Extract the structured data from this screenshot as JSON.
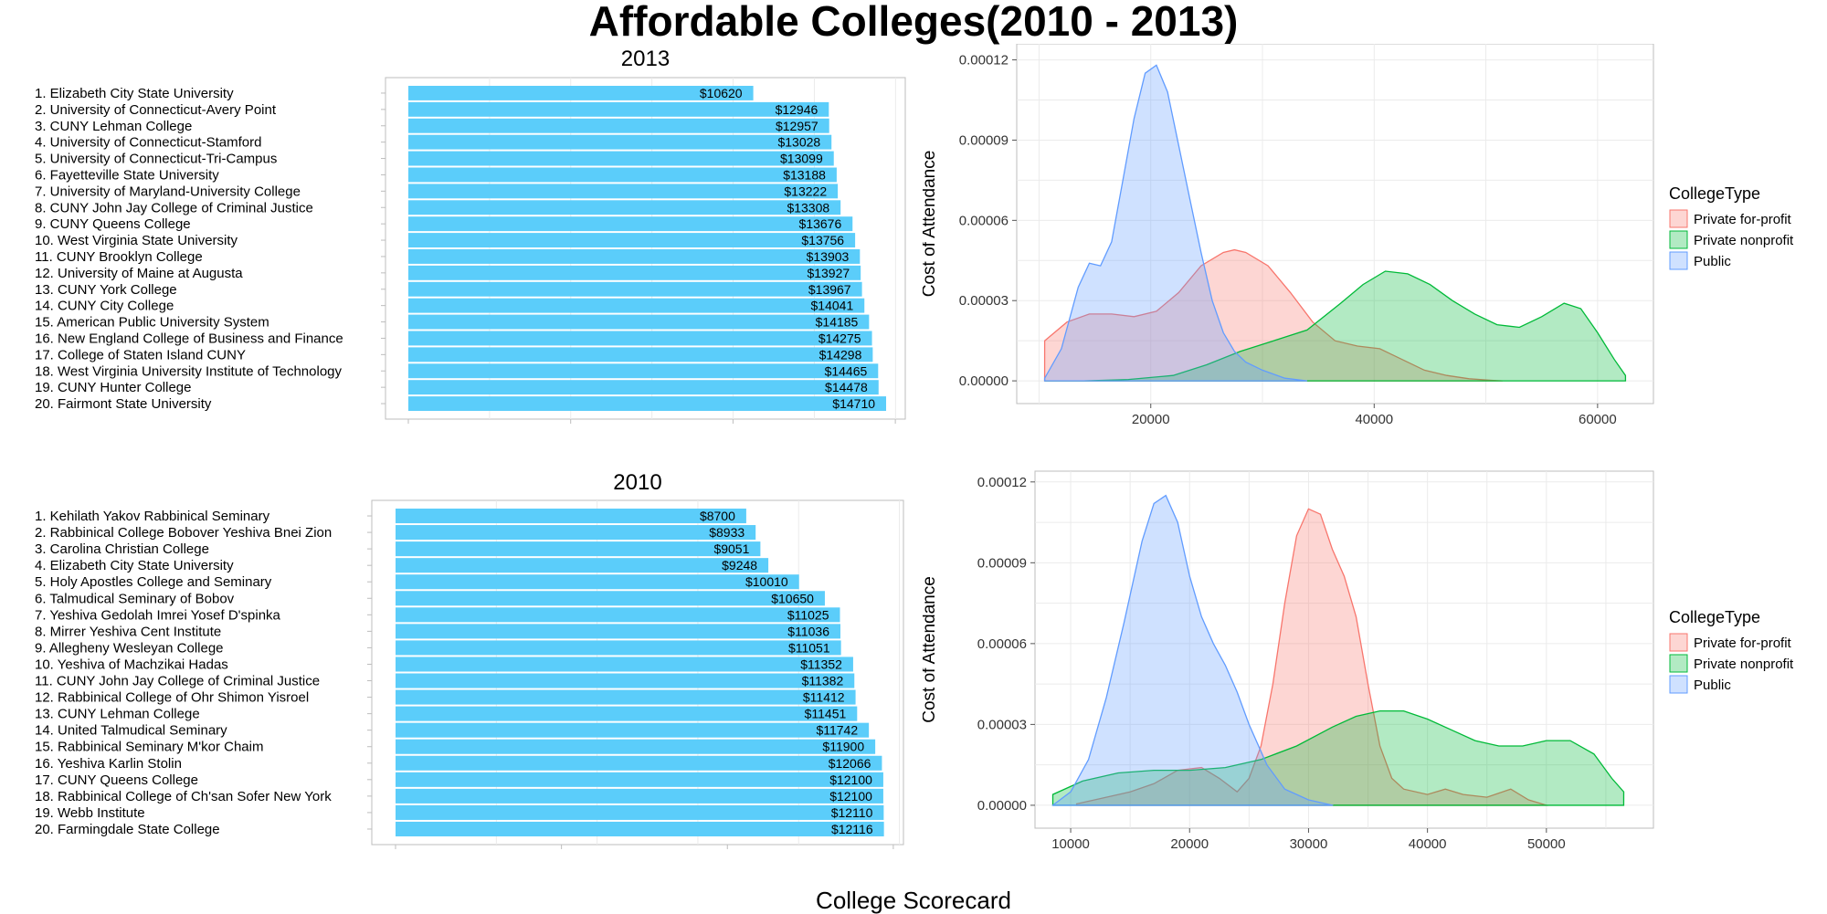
{
  "title": "Affordable Colleges(2010 - 2013)",
  "caption": "College Scorecard",
  "colors": {
    "bar": "#5bcdfa",
    "private_for_profit_fill": "#f8766d",
    "private_nonprofit_fill": "#00ba38",
    "public_fill": "#619cff",
    "grid": "#ebebeb",
    "panel_border": "#bdbdbd"
  },
  "chart_data": [
    {
      "type": "bar",
      "orientation": "horizontal",
      "title": "2013",
      "value_prefix": "$",
      "categories": [
        "1. Elizabeth City State University",
        "2. University of Connecticut-Avery Point",
        "3. CUNY Lehman College",
        "4. University of Connecticut-Stamford",
        "5. University of Connecticut-Tri-Campus",
        "6. Fayetteville State University",
        "7. University of Maryland-University College",
        "8. CUNY John Jay College of Criminal Justice",
        "9. CUNY Queens College",
        "10. West Virginia State University",
        "11. CUNY Brooklyn College",
        "12. University of Maine at Augusta",
        "13. CUNY York College",
        "14. CUNY City College",
        "15. American Public University System",
        "16. New England College of Business and Finance",
        "17. College of Staten Island CUNY",
        "18. West Virginia University Institute of Technology",
        "19. CUNY Hunter College",
        "20. Fairmont State University"
      ],
      "values": [
        10620,
        12946,
        12957,
        13028,
        13099,
        13188,
        13222,
        13308,
        13676,
        13756,
        13903,
        13927,
        13967,
        14041,
        14185,
        14275,
        14298,
        14465,
        14478,
        14710
      ],
      "xlim": [
        0,
        15300
      ],
      "grid": true
    },
    {
      "type": "bar",
      "orientation": "horizontal",
      "title": "2010",
      "value_prefix": "$",
      "categories": [
        "1. Kehilath Yakov Rabbinical Seminary",
        "2. Rabbinical College Bobover Yeshiva Bnei Zion",
        "3. Carolina Christian College",
        "4. Elizabeth City State University",
        "5. Holy Apostles College and Seminary",
        "6. Talmudical Seminary of Bobov",
        "7. Yeshiva Gedolah Imrei Yosef D'spinka",
        "8. Mirrer Yeshiva Cent Institute",
        "9. Allegheny Wesleyan College",
        "10. Yeshiva of Machzikai Hadas",
        "11. CUNY John Jay College of Criminal Justice",
        "12. Rabbinical College of Ohr Shimon Yisroel",
        "13. CUNY Lehman College",
        "14. United Talmudical Seminary",
        "15. Rabbinical Seminary M'kor Chaim",
        "16. Yeshiva Karlin Stolin",
        "17. CUNY Queens College",
        "18. Rabbinical College of Ch'san Sofer New York",
        "19. Webb Institute",
        "20. Farmingdale State College"
      ],
      "values": [
        8700,
        8933,
        9051,
        9248,
        10010,
        10650,
        11025,
        11036,
        11051,
        11352,
        11382,
        11412,
        11451,
        11742,
        11900,
        12066,
        12100,
        12100,
        12110,
        12116
      ],
      "xlim": [
        0,
        12600
      ],
      "grid": true
    },
    {
      "type": "area",
      "subtype": "density",
      "title": "",
      "xlabel": "",
      "ylabel": "Cost of Attendance",
      "xlim": [
        8000,
        65000
      ],
      "ylim": [
        -8.5e-06,
        0.000126
      ],
      "xticks": [
        20000,
        40000,
        60000
      ],
      "yticks": [
        0,
        3e-05,
        6e-05,
        9e-05,
        0.00012
      ],
      "ytick_labels": [
        "0.00000",
        "0.00003",
        "0.00006",
        "0.00009",
        "0.00012"
      ],
      "legend_title": "CollegeType",
      "legend_position": "right",
      "series": [
        {
          "name": "Private for-profit",
          "x": [
            10500,
            12500,
            14500,
            16500,
            18500,
            20500,
            22500,
            24500,
            26500,
            27500,
            28500,
            30500,
            32500,
            34500,
            36500,
            38500,
            40500,
            42500,
            44500,
            46500,
            48500,
            50500,
            51500
          ],
          "y": [
            1.5e-05,
            2.2e-05,
            2.5e-05,
            2.5e-05,
            2.4e-05,
            2.6e-05,
            3.3e-05,
            4.3e-05,
            4.8e-05,
            4.9e-05,
            4.8e-05,
            4.3e-05,
            3.3e-05,
            2.2e-05,
            1.5e-05,
            1.3e-05,
            1.2e-05,
            8e-06,
            4e-06,
            2e-06,
            8e-07,
            2e-07,
            0
          ]
        },
        {
          "name": "Private nonprofit",
          "x": [
            10500,
            14000,
            18000,
            22000,
            25000,
            28000,
            31000,
            34000,
            37000,
            39000,
            41000,
            43000,
            45000,
            47000,
            49000,
            51000,
            53000,
            55000,
            57000,
            58500,
            60000,
            61500,
            62500
          ],
          "y": [
            0,
            0,
            5e-07,
            2e-06,
            6e-06,
            1.1e-05,
            1.5e-05,
            1.9e-05,
            2.9e-05,
            3.6e-05,
            4.1e-05,
            4e-05,
            3.6e-05,
            3e-05,
            2.5e-05,
            2.1e-05,
            2e-05,
            2.4e-05,
            2.9e-05,
            2.7e-05,
            1.8e-05,
            8e-06,
            2e-06
          ]
        },
        {
          "name": "Public",
          "x": [
            10500,
            12000,
            13500,
            14500,
            15500,
            16500,
            17500,
            18500,
            19500,
            20500,
            21500,
            22500,
            23500,
            24500,
            25500,
            26500,
            27500,
            28500,
            30000,
            32000,
            34000
          ],
          "y": [
            1e-06,
            1.2e-05,
            3.5e-05,
            4.4e-05,
            4.3e-05,
            5.2e-05,
            7.5e-05,
            9.8e-05,
            0.000115,
            0.000118,
            0.000108,
            8.8e-05,
            6.8e-05,
            4.8e-05,
            3e-05,
            1.8e-05,
            1.1e-05,
            7e-06,
            4e-06,
            1e-06,
            0
          ]
        }
      ]
    },
    {
      "type": "area",
      "subtype": "density",
      "title": "",
      "xlabel": "",
      "ylabel": "Cost of Attendance",
      "xlim": [
        7000,
        59000
      ],
      "ylim": [
        -8.5e-06,
        0.000124
      ],
      "xticks": [
        10000,
        20000,
        30000,
        40000,
        50000
      ],
      "yticks": [
        0,
        3e-05,
        6e-05,
        9e-05,
        0.00012
      ],
      "ytick_labels": [
        "0.00000",
        "0.00003",
        "0.00006",
        "0.00009",
        "0.00012"
      ],
      "legend_title": "CollegeType",
      "legend_position": "right",
      "series": [
        {
          "name": "Private for-profit",
          "x": [
            10500,
            13000,
            15000,
            17000,
            19000,
            21000,
            22500,
            24000,
            25000,
            26000,
            27000,
            28000,
            29000,
            30000,
            31000,
            32000,
            33000,
            34000,
            35000,
            36000,
            37000,
            38000,
            40000,
            41500,
            43000,
            45000,
            47000,
            48500,
            50000
          ],
          "y": [
            5e-07,
            3e-06,
            5e-06,
            8e-06,
            1.3e-05,
            1.4e-05,
            1e-05,
            5e-06,
            1e-05,
            2.2e-05,
            4.5e-05,
            7.5e-05,
            0.0001,
            0.00011,
            0.000108,
            9.5e-05,
            8.5e-05,
            7e-05,
            4.5e-05,
            2.2e-05,
            1e-05,
            6e-06,
            4e-06,
            6e-06,
            4e-06,
            3e-06,
            6e-06,
            2e-06,
            0
          ]
        },
        {
          "name": "Private nonprofit",
          "x": [
            8500,
            11000,
            14000,
            17000,
            20000,
            23000,
            26000,
            29000,
            32000,
            34000,
            36000,
            38000,
            40000,
            42000,
            44000,
            46000,
            48000,
            50000,
            52000,
            54000,
            55500,
            56500
          ],
          "y": [
            4e-06,
            9e-06,
            1.2e-05,
            1.3e-05,
            1.3e-05,
            1.4e-05,
            1.7e-05,
            2.2e-05,
            2.9e-05,
            3.3e-05,
            3.5e-05,
            3.5e-05,
            3.2e-05,
            2.8e-05,
            2.4e-05,
            2.2e-05,
            2.2e-05,
            2.4e-05,
            2.4e-05,
            1.9e-05,
            1e-05,
            5e-06
          ]
        },
        {
          "name": "Public",
          "x": [
            8500,
            10000,
            11500,
            13000,
            14500,
            16000,
            17000,
            18000,
            19000,
            20000,
            21000,
            22000,
            23000,
            24000,
            25000,
            26500,
            28000,
            30000,
            32000
          ],
          "y": [
            0,
            5e-06,
            1.7e-05,
            4e-05,
            6.8e-05,
            9.8e-05,
            0.000112,
            0.000115,
            0.000105,
            8.5e-05,
            7e-05,
            6e-05,
            5.2e-05,
            4.2e-05,
            3e-05,
            1.5e-05,
            6e-06,
            2e-06,
            0
          ]
        }
      ]
    }
  ]
}
